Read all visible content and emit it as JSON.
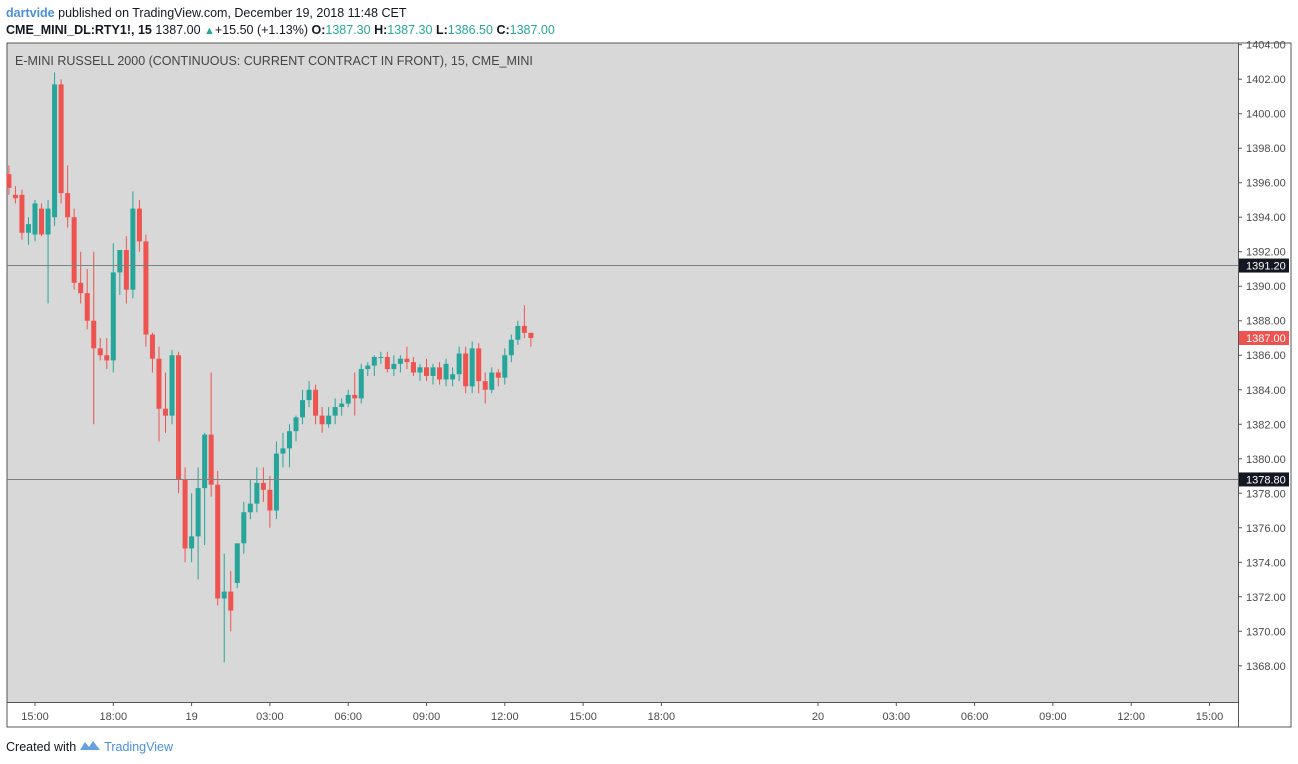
{
  "header": {
    "author": "dartvide",
    "published_text": "published on TradingView.com, December 19, 2018 11:48 CET",
    "symbol": "CME_MINI_DL:RTY1!, 15",
    "last": "1387.00",
    "change": "+15.50 (+1.13%)",
    "open_label": "O:",
    "open": "1387.30",
    "high_label": "H:",
    "high": "1387.30",
    "low_label": "L:",
    "low": "1386.50",
    "close_label": "C:",
    "close": "1387.00"
  },
  "chart_title": "E-MINI RUSSELL 2000 (CONTINUOUS: CURRENT CONTRACT IN FRONT), 15, CME_MINI",
  "footer": {
    "created_with": "Created with",
    "brand": "TradingView"
  },
  "colors": {
    "up": "#26a69a",
    "down": "#ef5350",
    "plot_bg": "#d8d8d8",
    "hline": "#7f7f7f",
    "label_dark": "#131722",
    "label_last": "#ef5350"
  },
  "chart_data": {
    "type": "candlestick",
    "title": "E-MINI RUSSELL 2000 (CONTINUOUS: CURRENT CONTRACT IN FRONT), 15, CME_MINI",
    "y_ticks": [
      "1368.00",
      "1370.00",
      "1372.00",
      "1374.00",
      "1376.00",
      "1378.00",
      "1380.00",
      "1382.00",
      "1384.00",
      "1386.00",
      "1388.00",
      "1390.00",
      "1392.00",
      "1394.00",
      "1396.00",
      "1398.00",
      "1400.00",
      "1402.00",
      "1404.00"
    ],
    "ylim": [
      1365.9,
      1404.1
    ],
    "x_ticks": [
      "15:00",
      "18:00",
      "19",
      "03:00",
      "06:00",
      "09:00",
      "12:00",
      "15:00",
      "18:00",
      "20",
      "03:00",
      "06:00",
      "09:00",
      "12:00",
      "15:00"
    ],
    "x_tick_hours": [
      0,
      3,
      6,
      9,
      12,
      15,
      18,
      21,
      24,
      30,
      33,
      36,
      39,
      42,
      45
    ],
    "bar_interval_minutes": 15,
    "first_bar_hour": -1,
    "horizontal_lines": [
      {
        "price": 1391.2,
        "label": "1391.20"
      },
      {
        "price": 1378.8,
        "label": "1378.80"
      }
    ],
    "last_price": {
      "price": 1387.0,
      "label": "1387.00"
    },
    "candles": [
      [
        1396.5,
        1397.0,
        1395.3,
        1395.7
      ],
      [
        1395.3,
        1395.8,
        1394.8,
        1395.1
      ],
      [
        1395.3,
        1395.6,
        1392.7,
        1393.1
      ],
      [
        1393.1,
        1394.0,
        1392.4,
        1393.6
      ],
      [
        1393.0,
        1395.0,
        1392.6,
        1394.8
      ],
      [
        1394.5,
        1394.8,
        1392.9,
        1393.0
      ],
      [
        1393.0,
        1395.0,
        1389.0,
        1394.5
      ],
      [
        1394.0,
        1402.4,
        1393.5,
        1401.7
      ],
      [
        1401.7,
        1402.0,
        1394.8,
        1395.4
      ],
      [
        1395.4,
        1397.0,
        1393.4,
        1394.0
      ],
      [
        1394.0,
        1394.5,
        1389.8,
        1390.2
      ],
      [
        1390.2,
        1392.0,
        1389.0,
        1389.6
      ],
      [
        1389.6,
        1391.0,
        1387.5,
        1388.0
      ],
      [
        1388.0,
        1392.0,
        1382.0,
        1386.4
      ],
      [
        1386.4,
        1387.0,
        1385.7,
        1386.0
      ],
      [
        1386.0,
        1387.0,
        1385.2,
        1385.7
      ],
      [
        1385.7,
        1392.5,
        1385.0,
        1390.8
      ],
      [
        1390.8,
        1392.0,
        1389.5,
        1392.1
      ],
      [
        1392.1,
        1392.9,
        1389.0,
        1389.8
      ],
      [
        1389.8,
        1395.5,
        1389.3,
        1394.5
      ],
      [
        1394.5,
        1395.0,
        1392.0,
        1392.6
      ],
      [
        1392.6,
        1393.0,
        1386.5,
        1387.2
      ],
      [
        1387.2,
        1387.3,
        1385.0,
        1385.8
      ],
      [
        1385.8,
        1386.5,
        1381.0,
        1382.9
      ],
      [
        1382.9,
        1385.0,
        1381.5,
        1382.5
      ],
      [
        1382.5,
        1386.3,
        1382.0,
        1386.0
      ],
      [
        1386.0,
        1386.2,
        1378.0,
        1378.8
      ],
      [
        1378.8,
        1379.5,
        1374.0,
        1374.8
      ],
      [
        1374.8,
        1378.0,
        1374.0,
        1375.5
      ],
      [
        1375.5,
        1379.5,
        1373.0,
        1378.3
      ],
      [
        1378.3,
        1381.5,
        1375.0,
        1381.4
      ],
      [
        1381.4,
        1385.0,
        1377.8,
        1378.5
      ],
      [
        1378.5,
        1379.3,
        1371.5,
        1371.9
      ],
      [
        1371.9,
        1374.5,
        1368.2,
        1372.3
      ],
      [
        1372.3,
        1373.5,
        1370.0,
        1371.2
      ],
      [
        1372.8,
        1375.0,
        1372.5,
        1375.1
      ],
      [
        1375.1,
        1377.5,
        1374.5,
        1376.9
      ],
      [
        1376.9,
        1378.8,
        1376.5,
        1377.4
      ],
      [
        1377.4,
        1379.5,
        1376.9,
        1378.6
      ],
      [
        1378.6,
        1379.5,
        1377.5,
        1378.2
      ],
      [
        1378.2,
        1379.0,
        1376.0,
        1377.0
      ],
      [
        1377.0,
        1381.0,
        1376.5,
        1380.3
      ],
      [
        1380.3,
        1381.5,
        1379.5,
        1380.6
      ],
      [
        1380.6,
        1382.0,
        1379.5,
        1381.6
      ],
      [
        1381.6,
        1382.5,
        1381.0,
        1382.4
      ],
      [
        1382.4,
        1384.0,
        1382.0,
        1383.4
      ],
      [
        1383.4,
        1384.5,
        1383.0,
        1384.0
      ],
      [
        1384.0,
        1384.3,
        1382.0,
        1382.5
      ],
      [
        1382.5,
        1383.0,
        1381.5,
        1382.0
      ],
      [
        1382.0,
        1383.0,
        1381.8,
        1382.5
      ],
      [
        1382.5,
        1383.5,
        1382.0,
        1383.0
      ],
      [
        1383.0,
        1383.5,
        1382.5,
        1383.2
      ],
      [
        1383.2,
        1384.0,
        1383.0,
        1383.7
      ],
      [
        1383.7,
        1385.0,
        1382.5,
        1383.5
      ],
      [
        1383.5,
        1385.5,
        1383.2,
        1385.2
      ],
      [
        1385.2,
        1385.6,
        1384.8,
        1385.4
      ],
      [
        1385.4,
        1386.0,
        1384.8,
        1385.9
      ],
      [
        1385.9,
        1386.2,
        1385.5,
        1385.9
      ],
      [
        1385.9,
        1386.2,
        1385.0,
        1385.2
      ],
      [
        1385.2,
        1386.0,
        1384.8,
        1385.5
      ],
      [
        1385.5,
        1386.0,
        1385.0,
        1385.8
      ],
      [
        1385.8,
        1386.5,
        1385.2,
        1385.6
      ],
      [
        1385.6,
        1385.9,
        1384.8,
        1385.0
      ],
      [
        1385.0,
        1385.5,
        1384.5,
        1385.3
      ],
      [
        1385.3,
        1385.8,
        1384.5,
        1384.8
      ],
      [
        1384.8,
        1385.5,
        1384.3,
        1385.3
      ],
      [
        1385.3,
        1385.6,
        1384.3,
        1384.6
      ],
      [
        1384.6,
        1385.8,
        1384.2,
        1385.5
      ],
      [
        1384.6,
        1385.3,
        1384.2,
        1384.9
      ],
      [
        1384.9,
        1386.5,
        1384.5,
        1386.1
      ],
      [
        1386.1,
        1386.5,
        1383.8,
        1384.2
      ],
      [
        1384.2,
        1386.8,
        1383.8,
        1386.4
      ],
      [
        1386.4,
        1386.7,
        1383.8,
        1384.5
      ],
      [
        1384.5,
        1385.0,
        1383.2,
        1384.0
      ],
      [
        1384.0,
        1385.3,
        1383.8,
        1385.0
      ],
      [
        1385.0,
        1385.2,
        1384.2,
        1384.7
      ],
      [
        1384.7,
        1386.4,
        1384.3,
        1386.0
      ],
      [
        1386.0,
        1387.2,
        1385.6,
        1386.9
      ],
      [
        1386.9,
        1388.0,
        1386.6,
        1387.7
      ],
      [
        1387.7,
        1388.9,
        1387.0,
        1387.3
      ],
      [
        1387.3,
        1387.3,
        1386.5,
        1387.0
      ]
    ]
  }
}
